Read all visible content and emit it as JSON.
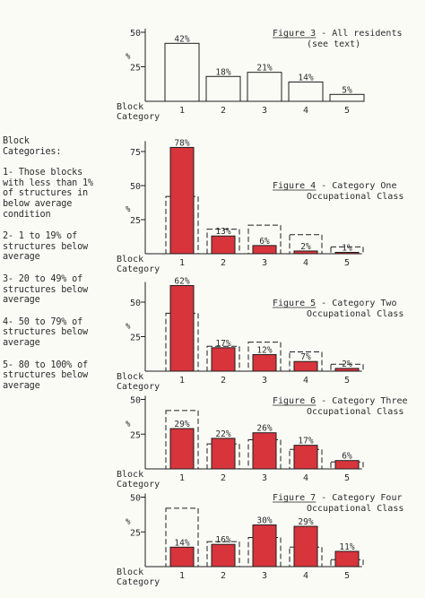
{
  "legend": {
    "heading_lines": [
      "Block",
      "Categories:"
    ],
    "items": [
      {
        "lines": [
          "1- Those blocks",
          "with less than 1%",
          "of structures in",
          "below average",
          "condition"
        ]
      },
      {
        "lines": [
          "2- 1 to 19% of",
          "structures below",
          "average"
        ]
      },
      {
        "lines": [
          "3- 20 to 49% of",
          "structures below",
          "average"
        ]
      },
      {
        "lines": [
          "4- 50 to 79% of",
          "structures below",
          "average"
        ]
      },
      {
        "lines": [
          "5- 80 to 100% of",
          "structures below",
          "average"
        ]
      }
    ]
  },
  "colors": {
    "bar_fill": "#d8343c",
    "outline": "#1e1e1e",
    "paper": "#fbfbf6"
  },
  "chart_data": [
    {
      "type": "bar",
      "title_lines": [
        "Figure 3 - All residents",
        "(see text)"
      ],
      "xlabel_lines": [
        "Block",
        "Category"
      ],
      "ylabel": "%",
      "categories": [
        "1",
        "2",
        "3",
        "4",
        "5"
      ],
      "values": [
        42,
        18,
        21,
        14,
        5
      ],
      "data_labels": [
        "42%",
        "18%",
        "21%",
        "14%",
        "5%"
      ],
      "yticks": [
        25,
        50
      ],
      "ylim": [
        0,
        50
      ],
      "style": "outline"
    },
    {
      "type": "bar",
      "title_lines": [
        "Figure 4 - Category One",
        "Occupational Class"
      ],
      "xlabel_lines": [
        "Block",
        "Category"
      ],
      "ylabel": "%",
      "categories": [
        "1",
        "2",
        "3",
        "4",
        "5"
      ],
      "values": [
        78,
        13,
        6,
        2,
        1
      ],
      "data_labels": [
        "78%",
        "13%",
        "6%",
        "2%",
        "1%"
      ],
      "reference_values": [
        42,
        18,
        21,
        14,
        5
      ],
      "yticks": [
        25,
        50,
        75
      ],
      "ylim": [
        0,
        80
      ],
      "style": "filled"
    },
    {
      "type": "bar",
      "title_lines": [
        "Figure 5 - Category Two",
        "Occupational Class"
      ],
      "xlabel_lines": [
        "Block",
        "Category"
      ],
      "ylabel": "%",
      "categories": [
        "1",
        "2",
        "3",
        "4",
        "5"
      ],
      "values": [
        62,
        17,
        12,
        7,
        2
      ],
      "data_labels": [
        "62%",
        "17%",
        "12%",
        "7%",
        "2%"
      ],
      "reference_values": [
        42,
        18,
        21,
        14,
        5
      ],
      "yticks": [
        25,
        50
      ],
      "ylim": [
        0,
        62
      ],
      "style": "filled"
    },
    {
      "type": "bar",
      "title_lines": [
        "Figure 6 - Category Three",
        "Occupational Class"
      ],
      "xlabel_lines": [
        "Block",
        "Category"
      ],
      "ylabel": "%",
      "categories": [
        "1",
        "2",
        "3",
        "4",
        "5"
      ],
      "values": [
        29,
        22,
        26,
        17,
        6
      ],
      "data_labels": [
        "29%",
        "22%",
        "26%",
        "17%",
        "6%"
      ],
      "reference_values": [
        42,
        18,
        21,
        14,
        5
      ],
      "yticks": [
        25,
        50
      ],
      "ylim": [
        0,
        50
      ],
      "style": "filled"
    },
    {
      "type": "bar",
      "title_lines": [
        "Figure 7 - Category Four",
        "Occupational Class"
      ],
      "xlabel_lines": [
        "Block",
        "Category"
      ],
      "ylabel": "%",
      "categories": [
        "1",
        "2",
        "3",
        "4",
        "5"
      ],
      "values": [
        14,
        16,
        30,
        29,
        11
      ],
      "data_labels": [
        "14%",
        "16%",
        "30%",
        "29%",
        "11%"
      ],
      "reference_values": [
        42,
        18,
        21,
        14,
        5
      ],
      "yticks": [
        25,
        50
      ],
      "ylim": [
        0,
        50
      ],
      "style": "filled"
    }
  ]
}
